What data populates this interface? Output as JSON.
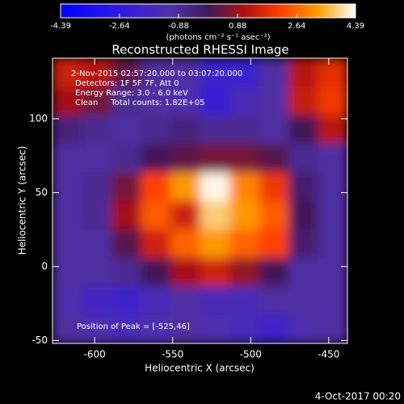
{
  "chart_data": {
    "type": "heatmap",
    "title": "Reconstructed RHESSI Image",
    "x_label": "Heliocentric X (arcsec)",
    "y_label": "Heliocentric Y (arcsec)",
    "colorbar_label": "(photons cm⁻² s⁻¹ asec⁻²)",
    "zlim": [
      -4.39,
      4.39
    ],
    "colorbar_ticks": [
      -4.39,
      -2.64,
      -0.88,
      0.88,
      2.64,
      4.39
    ],
    "colorscale": [
      "#0000ff",
      "#2010f0",
      "#3a20d0",
      "#5030a8",
      "#401858",
      "#b01010",
      "#ff4000",
      "#ffa000",
      "#ffffff"
    ],
    "xlim": [
      -627,
      -438
    ],
    "ylim": [
      -52,
      141
    ],
    "xticks": [
      -600,
      -550,
      -500,
      -450
    ],
    "yticks": [
      -50,
      0,
      50,
      100
    ],
    "annotations": [
      "2-Nov-2015 02:57:20.000 to 03:07:20.000",
      "Detectors: 1F 5F 7F, Att 0",
      "Energy Range: 3.0 - 6.0 keV",
      "Clean     Total counts: 1.82E+05"
    ],
    "peak_label": "Position of Peak = [-525,46]",
    "footer": "4-Oct-2017 00:20",
    "z": [
      [
        1.5,
        1.2,
        0.3,
        -1,
        -1,
        -2,
        -2.2,
        -1,
        1.2,
        1.8
      ],
      [
        1,
        0.5,
        -0.8,
        -1,
        -1.2,
        -2.3,
        -1.5,
        -1,
        1.4,
        2
      ],
      [
        -0.5,
        -0.8,
        -1,
        -0.8,
        -0.5,
        -0.8,
        -0.8,
        -1,
        0,
        1.2
      ],
      [
        -1,
        -1,
        -0.8,
        0,
        0.3,
        0.5,
        0.5,
        0.2,
        -0.8,
        -1
      ],
      [
        -1,
        -0.8,
        0.5,
        2.2,
        3.2,
        4.3,
        3,
        2,
        -0.3,
        -1
      ],
      [
        -1,
        -0.8,
        1,
        2.5,
        1.5,
        3.8,
        3.2,
        2.5,
        0,
        -1
      ],
      [
        -1,
        -1,
        0.2,
        1.5,
        2.6,
        3.2,
        2.6,
        2.2,
        -0.3,
        -1
      ],
      [
        -1,
        -1,
        -0.8,
        0,
        1,
        1.5,
        0.8,
        0,
        -1,
        -1
      ],
      [
        -1.2,
        -1.8,
        -2,
        -1.5,
        -1,
        -1.5,
        -1.5,
        -1,
        -1,
        -1
      ],
      [
        -1,
        -1.2,
        -1.5,
        -1.2,
        -1,
        -1.2,
        -1.5,
        -2,
        -1.2,
        -1
      ]
    ]
  }
}
